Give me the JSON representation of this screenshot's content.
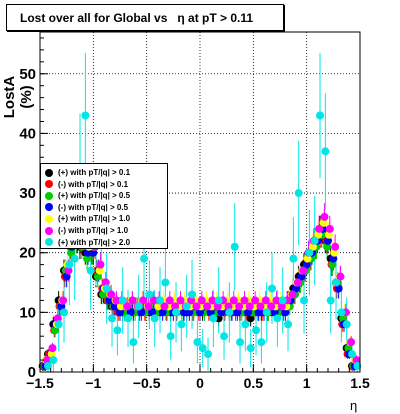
{
  "chart_data": {
    "type": "scatter",
    "title": "Lost over all for Global vs   η at pT > 0.11",
    "xlabel": "η",
    "ylabel": "LostA (%)",
    "xlim": [
      -1.5,
      1.5
    ],
    "ylim": [
      0,
      57
    ],
    "x_ticks": [
      -1.5,
      -1,
      -0.5,
      0,
      0.5,
      1,
      1.5
    ],
    "x_tick_labels": [
      "−1.5",
      "−1",
      "−0.5",
      "0",
      "0.5",
      "1",
      "1.5"
    ],
    "y_ticks": [
      0,
      10,
      20,
      30,
      40,
      50
    ],
    "y_tick_labels": [
      "0",
      "10",
      "20",
      "30",
      "40",
      "50"
    ],
    "grid": true,
    "legend_position": "left",
    "x": [
      -1.45,
      -1.4,
      -1.35,
      -1.3,
      -1.25,
      -1.2,
      -1.15,
      -1.1,
      -1.05,
      -1.0,
      -0.95,
      -0.9,
      -0.85,
      -0.8,
      -0.75,
      -0.7,
      -0.65,
      -0.6,
      -0.55,
      -0.5,
      -0.45,
      -0.4,
      -0.35,
      -0.3,
      -0.25,
      -0.2,
      -0.15,
      -0.1,
      -0.05,
      0.0,
      0.05,
      0.1,
      0.15,
      0.2,
      0.25,
      0.3,
      0.35,
      0.4,
      0.45,
      0.5,
      0.55,
      0.6,
      0.65,
      0.7,
      0.75,
      0.8,
      0.85,
      0.9,
      0.95,
      1.0,
      1.05,
      1.1,
      1.15,
      1.2,
      1.25,
      1.3,
      1.35,
      1.4,
      1.45
    ],
    "series": [
      {
        "name": "(+) with pT/|q| > 0.1",
        "color": "#000000",
        "values": [
          1,
          3,
          8,
          12,
          17,
          22,
          22,
          21,
          20,
          21,
          16,
          13,
          12,
          11,
          11,
          10,
          11,
          10,
          11,
          11,
          10,
          11,
          10,
          11,
          10,
          11,
          11,
          10,
          11,
          11,
          10,
          11,
          10,
          9,
          10,
          10,
          11,
          10,
          10,
          9,
          10,
          10,
          11,
          10,
          10,
          11,
          12,
          14,
          16,
          18,
          20,
          22,
          24,
          22,
          19,
          15,
          9,
          4,
          1
        ]
      },
      {
        "name": "(-) with pT/|q| > 0.1",
        "color": "#ff0000",
        "values": [
          1,
          3,
          7,
          11,
          16,
          21,
          23,
          22,
          21,
          20,
          17,
          14,
          12,
          11,
          10,
          11,
          10,
          11,
          10,
          10,
          11,
          10,
          11,
          10,
          11,
          10,
          11,
          11,
          10,
          10,
          11,
          10,
          11,
          10,
          10,
          11,
          10,
          11,
          10,
          10,
          11,
          10,
          10,
          11,
          11,
          10,
          12,
          13,
          15,
          17,
          19,
          21,
          23,
          22,
          18,
          14,
          8,
          3,
          1
        ]
      },
      {
        "name": "(+) with pT/|q| > 0.5",
        "color": "#00cc00",
        "values": [
          1,
          2,
          7,
          11,
          17,
          20,
          22,
          21,
          19,
          20,
          16,
          13,
          12,
          11,
          11,
          10,
          11,
          10,
          11,
          10,
          11,
          10,
          11,
          10,
          11,
          11,
          10,
          11,
          10,
          11,
          10,
          11,
          10,
          10,
          11,
          10,
          11,
          10,
          11,
          10,
          10,
          11,
          10,
          11,
          10,
          11,
          11,
          13,
          15,
          17,
          19,
          21,
          23,
          21,
          18,
          15,
          9,
          4,
          1
        ]
      },
      {
        "name": "(-) with pT/|q| > 0.5",
        "color": "#0000ff",
        "values": [
          1,
          3,
          8,
          11,
          16,
          21,
          22,
          22,
          20,
          20,
          17,
          14,
          12,
          11,
          10,
          11,
          10,
          11,
          10,
          11,
          10,
          11,
          10,
          11,
          10,
          11,
          10,
          10,
          11,
          10,
          11,
          10,
          11,
          10,
          11,
          10,
          10,
          11,
          10,
          11,
          10,
          10,
          11,
          10,
          11,
          10,
          12,
          14,
          16,
          18,
          20,
          22,
          24,
          22,
          19,
          14,
          8,
          3,
          1
        ]
      },
      {
        "name": "(+) with pT/|q| > 1.0",
        "color": "#ffff00",
        "values": [
          2,
          3,
          8,
          12,
          18,
          22,
          23,
          22,
          21,
          21,
          17,
          14,
          13,
          12,
          11,
          11,
          12,
          11,
          12,
          11,
          12,
          11,
          12,
          11,
          12,
          11,
          12,
          11,
          12,
          11,
          12,
          11,
          12,
          11,
          12,
          11,
          12,
          11,
          12,
          11,
          12,
          11,
          12,
          11,
          12,
          11,
          13,
          15,
          17,
          19,
          21,
          23,
          25,
          23,
          20,
          16,
          10,
          5,
          2
        ]
      },
      {
        "name": "(-) with pT/|q| > 1.0",
        "color": "#ff00ff",
        "values": [
          2,
          4,
          9,
          12,
          17,
          22,
          24,
          23,
          22,
          21,
          18,
          15,
          13,
          12,
          12,
          11,
          12,
          11,
          12,
          11,
          12,
          12,
          11,
          12,
          11,
          12,
          11,
          12,
          11,
          12,
          11,
          12,
          11,
          12,
          11,
          12,
          11,
          12,
          11,
          12,
          11,
          12,
          11,
          12,
          11,
          12,
          13,
          15,
          17,
          20,
          22,
          24,
          26,
          24,
          21,
          16,
          10,
          5,
          2
        ]
      },
      {
        "name": "(+) with pT/|q| > 2.0",
        "color": "#00e5e5",
        "values": [
          1,
          2,
          8,
          10,
          18,
          19,
          34,
          43,
          17,
          22,
          23,
          14,
          9,
          7,
          12,
          9,
          5,
          11,
          19,
          13,
          9,
          12,
          15,
          6,
          10,
          8,
          11,
          13,
          5,
          4,
          3,
          9,
          12,
          6,
          10,
          21,
          5,
          8,
          4,
          7,
          5,
          10,
          14,
          9,
          12,
          8,
          19,
          30,
          12,
          20,
          22,
          43,
          37,
          12,
          15,
          10,
          8,
          3,
          1
        ]
      }
    ]
  }
}
